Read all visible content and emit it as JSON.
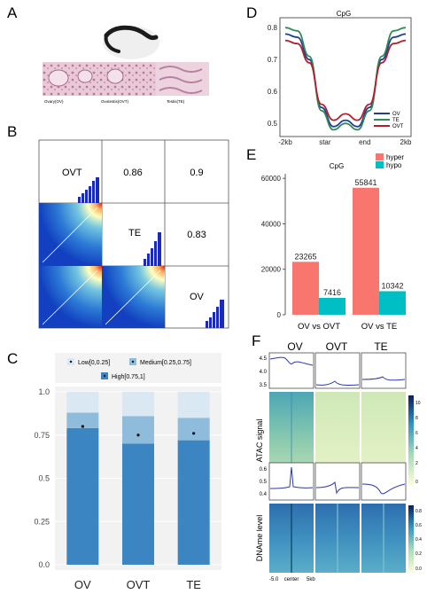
{
  "panels": {
    "A": {
      "letter": "A",
      "tissue_labels": [
        "Ovary(OV)",
        "Ovotestis(OVT)",
        "Testis(TE)"
      ]
    },
    "B": {
      "letter": "B",
      "samples": [
        "OVT",
        "TE",
        "OV"
      ],
      "correlations": {
        "ovt_te": "0.86",
        "ovt_ov": "0.9",
        "te_ov": "0.83"
      }
    },
    "C": {
      "letter": "C",
      "legend": [
        "Low[0,0.25]",
        "Medium[0.25,0.75]",
        "High[0.75,1]"
      ],
      "colors": {
        "low": "#d9e8f3",
        "medium": "#8fbcdb",
        "high": "#3b85c2"
      }
    },
    "D": {
      "letter": "D",
      "title": "CpG",
      "legend": [
        "OV",
        "TE",
        "OVT"
      ],
      "colors": {
        "OV": "#1f3f8f",
        "TE": "#2e8b57",
        "OVT": "#b21f2d"
      }
    },
    "E": {
      "letter": "E",
      "title": "CpG",
      "legend": [
        "hyper",
        "hypo"
      ],
      "colors": {
        "hyper": "#f8766d",
        "hypo": "#00bfc4"
      },
      "group_labels": [
        "OV vs OVT",
        "OV vs TE"
      ]
    },
    "F": {
      "letter": "F",
      "columns": [
        "OV",
        "OVT",
        "TE"
      ],
      "row_labels": [
        "ATAC signal",
        "DNAme level"
      ],
      "x_ticks": [
        "-5.0",
        "center",
        "5kb"
      ],
      "profile1_ticks": [
        "4.5",
        "4.0",
        "3.5"
      ],
      "profile2_ticks": [
        "0.6",
        "0.5",
        "0.4"
      ],
      "cbar1_ticks": [
        "10",
        "8",
        "6",
        "4",
        "2",
        "0"
      ],
      "cbar2_ticks": [
        "0.8",
        "0.6",
        "0.4",
        "0.2",
        "0.0"
      ]
    }
  },
  "chart_data": [
    {
      "type": "bar",
      "panel": "C",
      "categories": [
        "OV",
        "OVT",
        "TE"
      ],
      "series": [
        {
          "name": "High[0.75,1]",
          "values": [
            0.79,
            0.7,
            0.72
          ]
        },
        {
          "name": "Medium[0.25,0.75]",
          "values": [
            0.09,
            0.16,
            0.13
          ]
        },
        {
          "name": "Low[0,0.25]",
          "values": [
            0.12,
            0.14,
            0.15
          ]
        }
      ],
      "means": [
        0.8,
        0.75,
        0.76
      ],
      "ylim": [
        0,
        1.0
      ],
      "y_ticks": [
        "0.0",
        "0.25",
        "0.5",
        "0.75",
        "1.0"
      ]
    },
    {
      "type": "line",
      "panel": "D",
      "title": "CpG",
      "x_ticks": [
        "-2kb",
        "star",
        "end",
        "2kb"
      ],
      "y_ticks": [
        "0.5",
        "0.6",
        "0.7",
        "0.8"
      ],
      "ylim": [
        0.47,
        0.82
      ],
      "series": [
        {
          "name": "OV",
          "x": [
            0,
            0.1,
            0.2,
            0.3,
            0.4,
            0.5,
            0.6,
            0.7,
            0.8,
            0.9,
            1.0
          ],
          "values": [
            0.78,
            0.77,
            0.7,
            0.55,
            0.49,
            0.51,
            0.49,
            0.55,
            0.7,
            0.77,
            0.78
          ]
        },
        {
          "name": "TE",
          "x": [
            0,
            0.1,
            0.2,
            0.3,
            0.4,
            0.5,
            0.6,
            0.7,
            0.8,
            0.9,
            1.0
          ],
          "values": [
            0.8,
            0.79,
            0.71,
            0.54,
            0.48,
            0.5,
            0.48,
            0.54,
            0.71,
            0.79,
            0.8
          ]
        },
        {
          "name": "OVT",
          "x": [
            0,
            0.1,
            0.2,
            0.3,
            0.4,
            0.5,
            0.6,
            0.7,
            0.8,
            0.9,
            1.0
          ],
          "values": [
            0.76,
            0.75,
            0.69,
            0.56,
            0.51,
            0.53,
            0.51,
            0.56,
            0.69,
            0.75,
            0.76
          ]
        }
      ]
    },
    {
      "type": "bar",
      "panel": "E",
      "title": "CpG",
      "categories": [
        "OV vs OVT",
        "OV vs TE"
      ],
      "series": [
        {
          "name": "hyper",
          "values": [
            23265,
            55841
          ]
        },
        {
          "name": "hypo",
          "values": [
            7416,
            10342
          ]
        }
      ],
      "ylim": [
        0,
        62000
      ],
      "y_ticks": [
        "0",
        "20000",
        "40000",
        "60000"
      ]
    }
  ]
}
